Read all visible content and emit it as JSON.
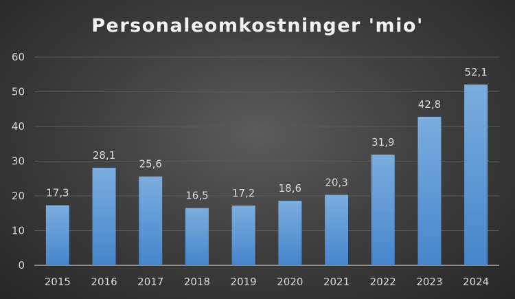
{
  "chart_data": {
    "type": "bar",
    "title": "Personaleomkostninger 'mio'",
    "xlabel": "",
    "ylabel": "",
    "categories": [
      "2015",
      "2016",
      "2017",
      "2018",
      "2019",
      "2020",
      "2021",
      "2022",
      "2023",
      "2024"
    ],
    "values": [
      17.3,
      28.1,
      25.6,
      16.5,
      17.2,
      18.6,
      20.3,
      31.9,
      42.8,
      52.1
    ],
    "data_labels": [
      "17,3",
      "28,1",
      "25,6",
      "16,5",
      "17,2",
      "18,6",
      "20,3",
      "31,9",
      "42,8",
      "52,1"
    ],
    "ylim": [
      0,
      60
    ],
    "yticks": [
      "0",
      "10",
      "20",
      "30",
      "40",
      "50",
      "60"
    ],
    "grid": true,
    "legend": "none",
    "colors": {
      "bar_top": "#7badde",
      "bar_bottom": "#4585cc",
      "grid": "#5a5a5a",
      "axis": "#a6a6a6"
    }
  }
}
